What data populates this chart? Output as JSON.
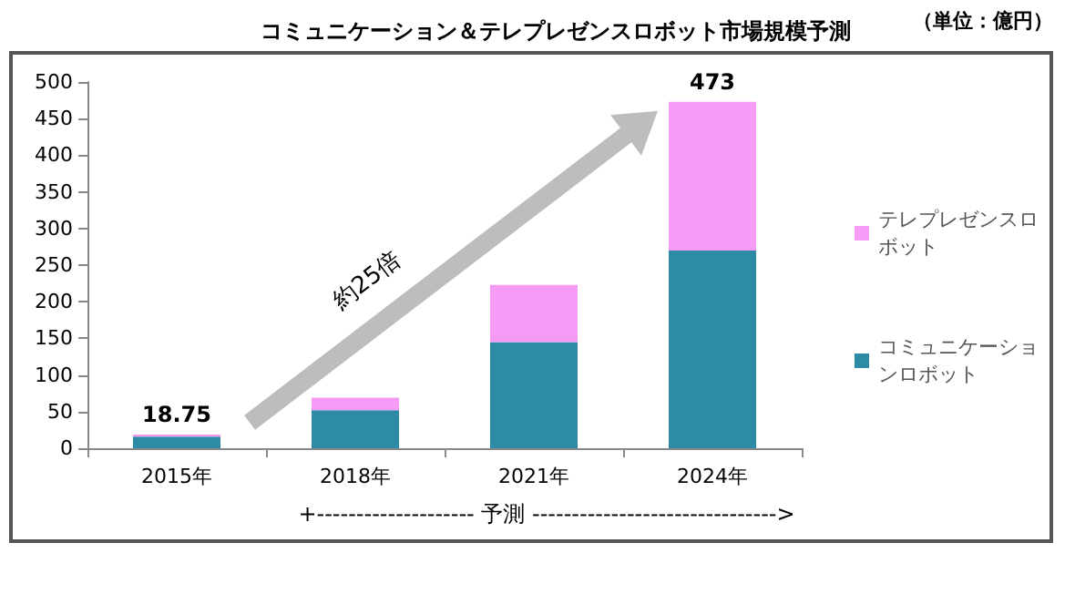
{
  "chart_data": {
    "type": "bar",
    "title": "コミュニケーション＆テレプレゼンスロボット市場規模予測",
    "categories": [
      "2015年",
      "2018年",
      "2021年",
      "2024年"
    ],
    "series": [
      {
        "name": "コミュニケーションロボット",
        "color": "#2e8ba5",
        "values": [
          16,
          52,
          145,
          270
        ]
      },
      {
        "name": "テレプレゼンスロボット",
        "color": "#f59af5",
        "values": [
          2.75,
          17,
          78,
          203
        ]
      }
    ],
    "stacked": true,
    "totals": [
      "18.75",
      null,
      null,
      "473"
    ],
    "ylim": [
      0,
      500
    ],
    "yticks": [
      0,
      50,
      100,
      150,
      200,
      250,
      300,
      350,
      400,
      450,
      500
    ],
    "grid": false,
    "legend": "right",
    "annotations": [
      "（単位：億円）",
      "約25倍",
      "+-------------------- 予測 ------------------------------->"
    ]
  }
}
